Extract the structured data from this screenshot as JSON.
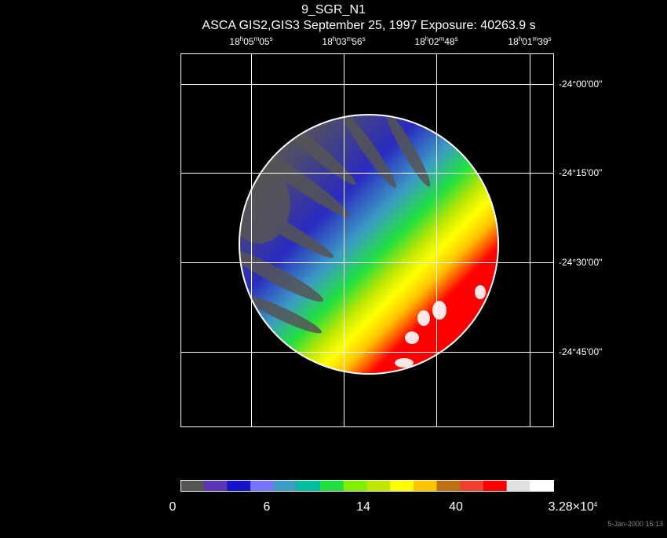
{
  "header": {
    "title": "9_SGR_N1",
    "subtitle": "ASCA GIS2,GIS3 September 25, 1997 Exposure: 40263.9 s"
  },
  "ra_labels": [
    [
      "18",
      "h",
      "05",
      "m",
      "05",
      "s"
    ],
    [
      "18",
      "h",
      "03",
      "m",
      "56",
      "s"
    ],
    [
      "18",
      "h",
      "02",
      "m",
      "48",
      "s"
    ],
    [
      "18",
      "h",
      "01",
      "m",
      "39",
      "s"
    ]
  ],
  "dec_labels": [
    "-24°00'00\"",
    "-24°15'00\"",
    "-24°30'00\"",
    "-24°45'00\""
  ],
  "colorbar": {
    "colors": [
      "#555555",
      "#5a35b5",
      "#1414c8",
      "#7474ff",
      "#3c9cc4",
      "#00c0a0",
      "#20e040",
      "#80f000",
      "#c0e800",
      "#ffff00",
      "#ffc400",
      "#c07014",
      "#f04030",
      "#ff0000",
      "#e0e0e0",
      "#ffffff"
    ],
    "labels": [
      [
        "0"
      ],
      [
        "6"
      ],
      [
        "14"
      ],
      [
        "40"
      ],
      [
        "3.28×10",
        "4"
      ]
    ]
  },
  "timestamp": "5-Jan-2000 15:13"
}
